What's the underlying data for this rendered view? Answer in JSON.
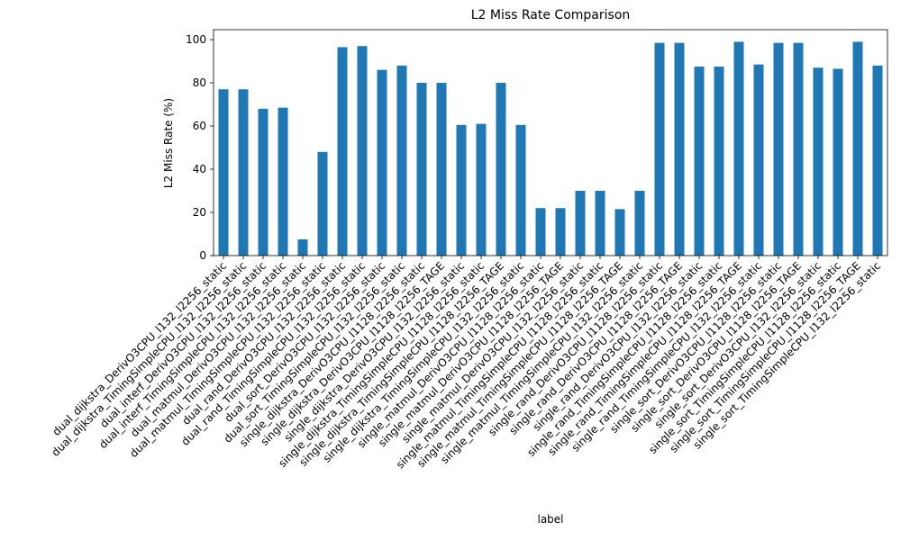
{
  "chart_data": {
    "type": "bar",
    "title": "L2 Miss Rate Comparison",
    "x_label": "label",
    "y_label": "L2 Miss Rate (%)",
    "categories": [
      "dual_dijkstra_DerivO3CPU_l132_l2256_static",
      "dual_dijkstra_TimingSimpleCPU_l132_l2256_static",
      "dual_interf_DerivO3CPU_l132_l2256_static",
      "dual_interf_TimingSimpleCPU_l132_l2256_static",
      "dual_matmul_DerivO3CPU_l132_l2256_static",
      "dual_matmul_TimingSimpleCPU_l132_l2256_static",
      "dual_rand_DerivO3CPU_l132_l2256_static",
      "dual_rand_TimingSimpleCPU_l132_l2256_static",
      "dual_sort_DerivO3CPU_l132_l2256_static",
      "dual_sort_TimingSimpleCPU_l132_l2256_static",
      "single_dijkstra_DerivO3CPU_l1128_l2256_static",
      "single_dijkstra_DerivO3CPU_l1128_l2256_TAGE",
      "single_dijkstra_DerivO3CPU_l132_l2256_static",
      "single_dijkstra_TimingSimpleCPU_l1128_l2256_static",
      "single_dijkstra_TimingSimpleCPU_l1128_l2256_TAGE",
      "single_dijkstra_TimingSimpleCPU_l132_l2256_static",
      "single_matmul_DerivO3CPU_l1128_l2256_static",
      "single_matmul_DerivO3CPU_l1128_l2256_TAGE",
      "single_matmul_DerivO3CPU_l132_l2256_static",
      "single_matmul_TimingSimpleCPU_l1128_l2256_static",
      "single_matmul_TimingSimpleCPU_l1128_l2256_TAGE",
      "single_matmul_TimingSimpleCPU_l132_l2256_static",
      "single_rand_DerivO3CPU_l1128_l2256_static",
      "single_rand_DerivO3CPU_l1128_l2256_TAGE",
      "single_rand_DerivO3CPU_l132_l2256_static",
      "single_rand_TimingSimpleCPU_l1128_l2256_static",
      "single_rand_TimingSimpleCPU_l1128_l2256_TAGE",
      "single_rand_TimingSimpleCPU_l132_l2256_static",
      "single_sort_DerivO3CPU_l1128_l2256_static",
      "single_sort_DerivO3CPU_l1128_l2256_TAGE",
      "single_sort_DerivO3CPU_l132_l2256_static",
      "single_sort_TimingSimpleCPU_l1128_l2256_static",
      "single_sort_TimingSimpleCPU_l1128_l2256_TAGE",
      "single_sort_TimingSimpleCPU_l132_l2256_static"
    ],
    "values": [
      77,
      77,
      68,
      68.5,
      7.5,
      48,
      96.5,
      97,
      86,
      88,
      80,
      80,
      60.5,
      61,
      80,
      60.5,
      22,
      22,
      30,
      30,
      21.5,
      30,
      98.5,
      98.5,
      87.5,
      87.5,
      99,
      88.5,
      98.5,
      98.5,
      87,
      86.5,
      99,
      88
    ],
    "color": "#1f77b4",
    "ylim": [
      0,
      104.6
    ],
    "yticks": [
      0,
      20,
      40,
      60,
      80,
      100
    ],
    "grid": false
  }
}
